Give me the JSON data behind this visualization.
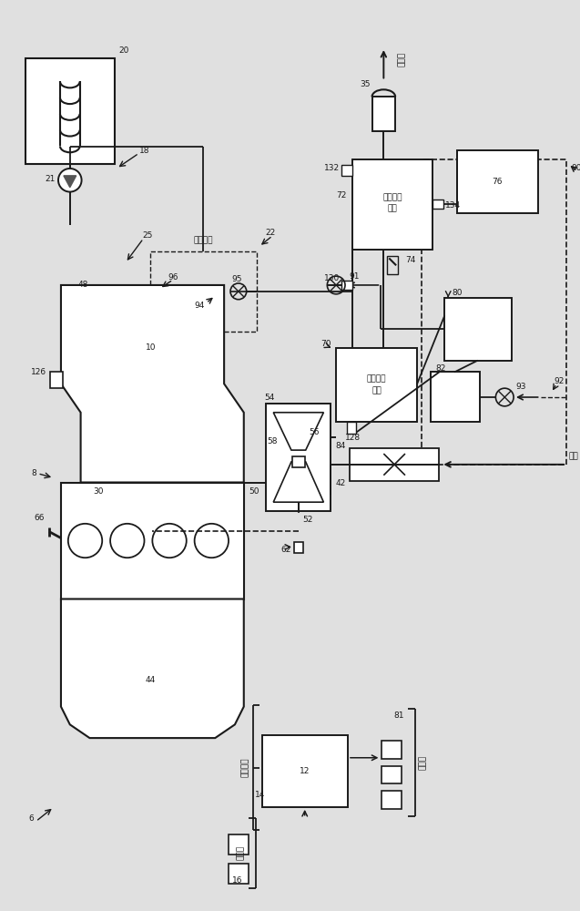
{
  "bg_color": "#e0e0e0",
  "line_color": "#1a1a1a",
  "box_fill": "#ffffff",
  "labels": {
    "to_atm": "到大气",
    "from_atm": "来自大气",
    "emission_ctrl": "排放控制\n装置",
    "ctrl_system": "控制系统",
    "intake": "进气",
    "actuator": "执行器",
    "sensor": "传感器",
    "n14": "14",
    "ec1": "排放控制",
    "ec2": "装置"
  }
}
